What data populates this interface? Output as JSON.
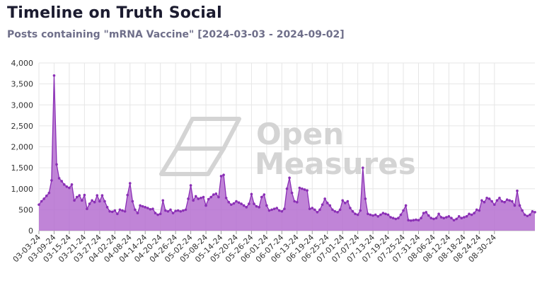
{
  "header": {
    "title": "Timeline on Truth Social",
    "subtitle": "Posts containing \"mRNA Vaccine\" [2024-03-03 - 2024-09-02]"
  },
  "watermark": {
    "line1": "Open",
    "line2": "Measures",
    "icon": "open-measures-logo"
  },
  "colors": {
    "line": "#8a2fb5",
    "fill": "#b56fd0",
    "marker": "#8a2fb5",
    "grid": "#e6e6e6"
  },
  "chart_data": {
    "type": "area",
    "title": "",
    "xlabel": "",
    "ylabel": "",
    "ylim": [
      0,
      4000
    ],
    "yticks": [
      "0",
      "500",
      "1,000",
      "1,500",
      "2,000",
      "2,500",
      "3,000",
      "3,500",
      "4,000"
    ],
    "xticks": [
      "03-03-24",
      "03-09-24",
      "03-15-24",
      "03-21-24",
      "03-27-24",
      "04-02-24",
      "04-08-24",
      "04-14-24",
      "04-20-24",
      "04-26-24",
      "05-02-24",
      "05-08-24",
      "05-14-24",
      "05-20-24",
      "05-26-24",
      "06-01-24",
      "06-07-24",
      "06-13-24",
      "06-19-24",
      "06-25-24",
      "07-01-24",
      "07-07-24",
      "07-13-24",
      "07-19-24",
      "07-25-24",
      "07-31-24",
      "08-06-24",
      "08-12-24",
      "08-18-24",
      "08-24-24",
      "08-30-24"
    ],
    "grid": true,
    "legend": "none",
    "series": [
      {
        "values": [
          620,
          700,
          760,
          830,
          900,
          1200,
          3700,
          1580,
          1250,
          1180,
          1100,
          1050,
          1020,
          1100,
          720,
          800,
          840,
          720,
          850,
          520,
          640,
          720,
          680,
          840,
          700,
          840,
          700,
          560,
          460,
          450,
          480,
          400,
          500,
          480,
          460,
          850,
          1130,
          700,
          500,
          420,
          600,
          580,
          560,
          540,
          510,
          520,
          420,
          380,
          400,
          720,
          480,
          460,
          500,
          420,
          470,
          480,
          460,
          480,
          500,
          760,
          1080,
          720,
          820,
          760,
          780,
          800,
          600,
          750,
          800,
          860,
          880,
          800,
          1300,
          1330,
          780,
          680,
          620,
          650,
          700,
          670,
          640,
          600,
          560,
          640,
          870,
          640,
          580,
          560,
          800,
          860,
          600,
          480,
          500,
          520,
          540,
          480,
          460,
          520,
          1000,
          1260,
          900,
          700,
          680,
          1020,
          1000,
          980,
          960,
          520,
          540,
          500,
          440,
          500,
          620,
          760,
          660,
          600,
          500,
          460,
          440,
          500,
          720,
          660,
          700,
          540,
          460,
          400,
          380,
          480,
          1500,
          760,
          400,
          380,
          360,
          380,
          340,
          380,
          420,
          400,
          380,
          320,
          300,
          280,
          300,
          380,
          480,
          600,
          250,
          240,
          250,
          260,
          250,
          300,
          420,
          440,
          360,
          300,
          280,
          300,
          400,
          320,
          300,
          320,
          340,
          300,
          250,
          280,
          340,
          300,
          320,
          340,
          400,
          380,
          420,
          500,
          480,
          720,
          680,
          780,
          760,
          700,
          620,
          720,
          780,
          700,
          680,
          740,
          720,
          700,
          600,
          950,
          600,
          480,
          380,
          350,
          380,
          460,
          440
        ]
      }
    ]
  }
}
